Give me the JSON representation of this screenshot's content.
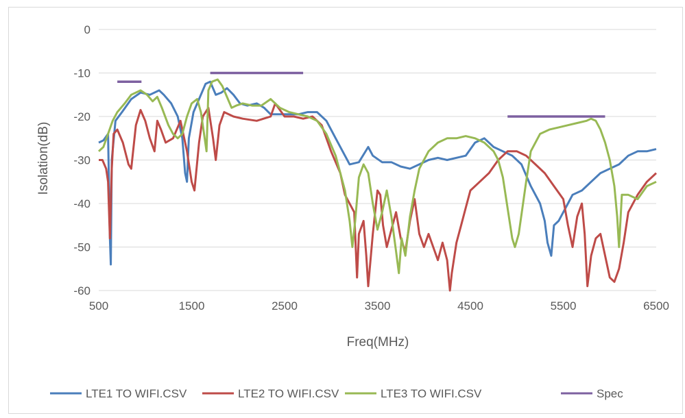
{
  "chart_data": {
    "type": "line",
    "xlabel": "Freq(MHz)",
    "ylabel": "Isolation(dB)",
    "xlim": [
      500,
      6500
    ],
    "ylim": [
      -60,
      0
    ],
    "xticks": [
      500,
      1500,
      2500,
      3500,
      4500,
      5500,
      6500
    ],
    "yticks": [
      0,
      -10,
      -20,
      -30,
      -40,
      -50,
      -60
    ],
    "grid": "horizontal",
    "legend_position": "bottom",
    "series": [
      {
        "name": "LTE1 TO WIFI.CSV",
        "color": "#4a7ebb",
        "points": [
          [
            500,
            -26
          ],
          [
            550,
            -25.5
          ],
          [
            600,
            -24
          ],
          [
            620,
            -48
          ],
          [
            630,
            -54
          ],
          [
            640,
            -30
          ],
          [
            680,
            -21
          ],
          [
            750,
            -19
          ],
          [
            850,
            -16
          ],
          [
            950,
            -14.5
          ],
          [
            1050,
            -15
          ],
          [
            1150,
            -14
          ],
          [
            1200,
            -15
          ],
          [
            1280,
            -17
          ],
          [
            1350,
            -20
          ],
          [
            1400,
            -25
          ],
          [
            1430,
            -33
          ],
          [
            1450,
            -35
          ],
          [
            1470,
            -25
          ],
          [
            1520,
            -19
          ],
          [
            1580,
            -16
          ],
          [
            1650,
            -12.5
          ],
          [
            1700,
            -12
          ],
          [
            1760,
            -15
          ],
          [
            1820,
            -14.5
          ],
          [
            1880,
            -13.5
          ],
          [
            1950,
            -15
          ],
          [
            2020,
            -17
          ],
          [
            2100,
            -17.5
          ],
          [
            2200,
            -17
          ],
          [
            2280,
            -18
          ],
          [
            2350,
            -19.5
          ],
          [
            2450,
            -19.5
          ],
          [
            2550,
            -19.5
          ],
          [
            2650,
            -19.5
          ],
          [
            2750,
            -19
          ],
          [
            2850,
            -19
          ],
          [
            2950,
            -21
          ],
          [
            3050,
            -25
          ],
          [
            3150,
            -29
          ],
          [
            3200,
            -31
          ],
          [
            3300,
            -30.5
          ],
          [
            3400,
            -27
          ],
          [
            3450,
            -29
          ],
          [
            3550,
            -30.5
          ],
          [
            3650,
            -30.5
          ],
          [
            3750,
            -31.5
          ],
          [
            3850,
            -32
          ],
          [
            3950,
            -31
          ],
          [
            4050,
            -30
          ],
          [
            4150,
            -29.5
          ],
          [
            4250,
            -30
          ],
          [
            4350,
            -29.5
          ],
          [
            4450,
            -29
          ],
          [
            4550,
            -26
          ],
          [
            4650,
            -25
          ],
          [
            4750,
            -27
          ],
          [
            4850,
            -28
          ],
          [
            4950,
            -29
          ],
          [
            5050,
            -31
          ],
          [
            5150,
            -36
          ],
          [
            5250,
            -40
          ],
          [
            5300,
            -44
          ],
          [
            5330,
            -49
          ],
          [
            5370,
            -52
          ],
          [
            5400,
            -45
          ],
          [
            5450,
            -44
          ],
          [
            5500,
            -42
          ],
          [
            5550,
            -40
          ],
          [
            5600,
            -38
          ],
          [
            5700,
            -37
          ],
          [
            5800,
            -35
          ],
          [
            5900,
            -33
          ],
          [
            6000,
            -32
          ],
          [
            6100,
            -31
          ],
          [
            6200,
            -29
          ],
          [
            6300,
            -28
          ],
          [
            6400,
            -28
          ],
          [
            6500,
            -27.5
          ]
        ]
      },
      {
        "name": "LTE2 TO WIFI.CSV",
        "color": "#be4b48",
        "points": [
          [
            500,
            -30
          ],
          [
            540,
            -30
          ],
          [
            580,
            -32
          ],
          [
            600,
            -35
          ],
          [
            620,
            -48
          ],
          [
            640,
            -32
          ],
          [
            660,
            -24
          ],
          [
            700,
            -23
          ],
          [
            760,
            -26
          ],
          [
            820,
            -31
          ],
          [
            850,
            -32
          ],
          [
            900,
            -22
          ],
          [
            950,
            -18.5
          ],
          [
            1000,
            -21
          ],
          [
            1050,
            -25
          ],
          [
            1100,
            -28
          ],
          [
            1130,
            -21
          ],
          [
            1170,
            -23
          ],
          [
            1220,
            -26
          ],
          [
            1300,
            -25
          ],
          [
            1380,
            -21
          ],
          [
            1450,
            -28
          ],
          [
            1500,
            -35
          ],
          [
            1530,
            -37
          ],
          [
            1580,
            -26
          ],
          [
            1620,
            -20
          ],
          [
            1680,
            -18
          ],
          [
            1730,
            -25
          ],
          [
            1760,
            -30
          ],
          [
            1800,
            -22
          ],
          [
            1850,
            -19
          ],
          [
            1950,
            -20
          ],
          [
            2050,
            -20.5
          ],
          [
            2200,
            -21
          ],
          [
            2350,
            -20
          ],
          [
            2400,
            -17
          ],
          [
            2500,
            -20
          ],
          [
            2600,
            -20
          ],
          [
            2700,
            -20.5
          ],
          [
            2800,
            -20
          ],
          [
            2900,
            -22
          ],
          [
            3000,
            -28
          ],
          [
            3100,
            -33
          ],
          [
            3150,
            -38
          ],
          [
            3250,
            -42
          ],
          [
            3280,
            -57
          ],
          [
            3300,
            -47
          ],
          [
            3350,
            -44
          ],
          [
            3380,
            -52
          ],
          [
            3400,
            -59
          ],
          [
            3450,
            -47
          ],
          [
            3500,
            -37
          ],
          [
            3530,
            -38
          ],
          [
            3560,
            -45
          ],
          [
            3600,
            -50
          ],
          [
            3650,
            -46
          ],
          [
            3700,
            -42
          ],
          [
            3750,
            -48
          ],
          [
            3800,
            -51
          ],
          [
            3850,
            -44
          ],
          [
            3900,
            -39
          ],
          [
            3950,
            -47
          ],
          [
            4000,
            -50
          ],
          [
            4050,
            -47
          ],
          [
            4100,
            -50
          ],
          [
            4150,
            -53
          ],
          [
            4200,
            -49
          ],
          [
            4250,
            -53
          ],
          [
            4280,
            -60
          ],
          [
            4300,
            -56
          ],
          [
            4350,
            -49
          ],
          [
            4400,
            -45
          ],
          [
            4450,
            -41
          ],
          [
            4500,
            -37
          ],
          [
            4600,
            -35
          ],
          [
            4700,
            -33
          ],
          [
            4800,
            -30
          ],
          [
            4900,
            -28
          ],
          [
            5000,
            -28
          ],
          [
            5100,
            -29
          ],
          [
            5200,
            -31
          ],
          [
            5300,
            -33
          ],
          [
            5400,
            -36
          ],
          [
            5500,
            -39
          ],
          [
            5550,
            -45
          ],
          [
            5600,
            -50
          ],
          [
            5650,
            -43
          ],
          [
            5700,
            -40
          ],
          [
            5730,
            -47
          ],
          [
            5760,
            -59
          ],
          [
            5800,
            -52
          ],
          [
            5850,
            -48
          ],
          [
            5900,
            -47
          ],
          [
            5950,
            -52
          ],
          [
            6000,
            -57
          ],
          [
            6050,
            -58
          ],
          [
            6100,
            -55
          ],
          [
            6150,
            -49
          ],
          [
            6200,
            -42
          ],
          [
            6300,
            -38
          ],
          [
            6400,
            -35
          ],
          [
            6500,
            -33
          ]
        ]
      },
      {
        "name": "LTE3 TO WIFI.CSV",
        "color": "#98b954",
        "points": [
          [
            500,
            -28
          ],
          [
            550,
            -27
          ],
          [
            600,
            -24
          ],
          [
            650,
            -21
          ],
          [
            700,
            -19
          ],
          [
            780,
            -17
          ],
          [
            850,
            -15
          ],
          [
            950,
            -14
          ],
          [
            1020,
            -15
          ],
          [
            1080,
            -16.5
          ],
          [
            1130,
            -15.5
          ],
          [
            1180,
            -18
          ],
          [
            1250,
            -22
          ],
          [
            1300,
            -24
          ],
          [
            1350,
            -25
          ],
          [
            1400,
            -24
          ],
          [
            1450,
            -20
          ],
          [
            1500,
            -17
          ],
          [
            1560,
            -16
          ],
          [
            1600,
            -19
          ],
          [
            1640,
            -25
          ],
          [
            1660,
            -28
          ],
          [
            1680,
            -14
          ],
          [
            1720,
            -12
          ],
          [
            1780,
            -11.5
          ],
          [
            1830,
            -13
          ],
          [
            1880,
            -15.5
          ],
          [
            1930,
            -18
          ],
          [
            1980,
            -17.5
          ],
          [
            2050,
            -17
          ],
          [
            2150,
            -17.5
          ],
          [
            2250,
            -17.5
          ],
          [
            2350,
            -16
          ],
          [
            2450,
            -18
          ],
          [
            2550,
            -19
          ],
          [
            2650,
            -19.5
          ],
          [
            2750,
            -20
          ],
          [
            2850,
            -21
          ],
          [
            2950,
            -24
          ],
          [
            3050,
            -29
          ],
          [
            3150,
            -37
          ],
          [
            3200,
            -44
          ],
          [
            3230,
            -50
          ],
          [
            3260,
            -44
          ],
          [
            3300,
            -34
          ],
          [
            3350,
            -31
          ],
          [
            3400,
            -33
          ],
          [
            3450,
            -40
          ],
          [
            3500,
            -46
          ],
          [
            3550,
            -42
          ],
          [
            3600,
            -37
          ],
          [
            3650,
            -43
          ],
          [
            3700,
            -51
          ],
          [
            3730,
            -56
          ],
          [
            3760,
            -48
          ],
          [
            3800,
            -52
          ],
          [
            3850,
            -43
          ],
          [
            3900,
            -37
          ],
          [
            3950,
            -32
          ],
          [
            4050,
            -28
          ],
          [
            4150,
            -26
          ],
          [
            4250,
            -25
          ],
          [
            4350,
            -25
          ],
          [
            4450,
            -24.5
          ],
          [
            4550,
            -25
          ],
          [
            4650,
            -26
          ],
          [
            4750,
            -28
          ],
          [
            4800,
            -30
          ],
          [
            4850,
            -34
          ],
          [
            4900,
            -41
          ],
          [
            4950,
            -48
          ],
          [
            4980,
            -50
          ],
          [
            5020,
            -47
          ],
          [
            5060,
            -41
          ],
          [
            5100,
            -35
          ],
          [
            5150,
            -28
          ],
          [
            5250,
            -24
          ],
          [
            5350,
            -23
          ],
          [
            5450,
            -22.5
          ],
          [
            5550,
            -22
          ],
          [
            5650,
            -21.5
          ],
          [
            5750,
            -21
          ],
          [
            5800,
            -20.5
          ],
          [
            5850,
            -21
          ],
          [
            5900,
            -23
          ],
          [
            5950,
            -26
          ],
          [
            6000,
            -30
          ],
          [
            6050,
            -36
          ],
          [
            6080,
            -43
          ],
          [
            6100,
            -50
          ],
          [
            6130,
            -38
          ],
          [
            6200,
            -38
          ],
          [
            6300,
            -39
          ],
          [
            6400,
            -36
          ],
          [
            6500,
            -35
          ]
        ]
      },
      {
        "name": "Spec",
        "color": "#7d60a0",
        "segments": [
          [
            [
              700,
              -12
            ],
            [
              960,
              -12
            ]
          ],
          [
            [
              1700,
              -10
            ],
            [
              2700,
              -10
            ]
          ],
          [
            [
              4900,
              -20
            ],
            [
              5950,
              -20
            ]
          ]
        ]
      }
    ]
  }
}
